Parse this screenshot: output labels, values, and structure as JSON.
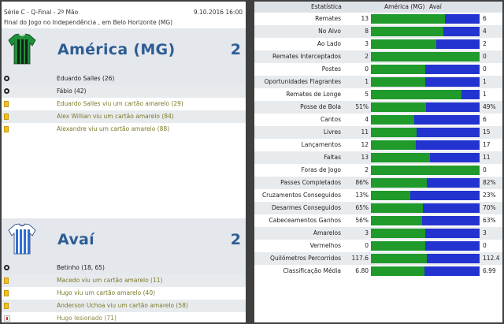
{
  "match": {
    "competition": "Série C - Q-Final - 2ª Mão",
    "date": "9.10.2016 16:00",
    "venue": "Final do Jogo no Independência , em Belo Horizonte (MG)"
  },
  "home": {
    "name": "América (MG)",
    "score": "2",
    "kit_colors": [
      "#1e8f3a",
      "#1a1a1a"
    ],
    "events": [
      {
        "icon": "ball-icon",
        "type": "goal",
        "text": "Eduardo Salles (26)"
      },
      {
        "icon": "ball-icon",
        "type": "goal",
        "text": "Fábio (42)"
      },
      {
        "icon": "yellow-card-icon",
        "type": "card",
        "text": "Eduardo Salles viu um cartão amarelo (29)"
      },
      {
        "icon": "yellow-card-icon",
        "type": "card",
        "text": "Alex Willian viu um cartão amarelo (84)"
      },
      {
        "icon": "yellow-card-icon",
        "type": "card",
        "text": "Alexandre viu um cartão amarelo (88)"
      }
    ]
  },
  "away": {
    "name": "Avaí",
    "score": "2",
    "kit_colors": [
      "#2f6fd0",
      "#ffffff"
    ],
    "events": [
      {
        "icon": "ball-icon",
        "type": "goal",
        "text": "Betinho (18, 65)"
      },
      {
        "icon": "yellow-card-icon",
        "type": "card",
        "text": "Macedo viu um cartão amarelo (11)"
      },
      {
        "icon": "yellow-card-icon",
        "type": "card",
        "text": "Hugo viu um cartão amarelo (40)"
      },
      {
        "icon": "yellow-card-icon",
        "type": "card",
        "text": "Anderson Uchoa viu um cartão amarelo (58)"
      },
      {
        "icon": "injury-icon",
        "type": "injury",
        "text": "Hugo lesionado (71)"
      }
    ]
  },
  "stats": {
    "header": {
      "stat": "Estatística",
      "home": "América (MG)",
      "away": "Avaí"
    },
    "colors": {
      "home": "#1f9a2b",
      "away": "#2333d0"
    },
    "rows": [
      {
        "label": "Remates",
        "home": "13",
        "away": "6",
        "home_share": 0.684
      },
      {
        "label": "No Alvo",
        "home": "8",
        "away": "4",
        "home_share": 0.667
      },
      {
        "label": "Ao Lado",
        "home": "3",
        "away": "2",
        "home_share": 0.6
      },
      {
        "label": "Remates Interceptados",
        "home": "2",
        "away": "0",
        "home_share": 1.0
      },
      {
        "label": "Postes",
        "home": "0",
        "away": "0",
        "home_share": 0.5
      },
      {
        "label": "Oportunidades Flagrantes",
        "home": "1",
        "away": "1",
        "home_share": 0.5
      },
      {
        "label": "Remates de Longe",
        "home": "5",
        "away": "1",
        "home_share": 0.833
      },
      {
        "label": "Posse de Bola",
        "home": "51%",
        "away": "49%",
        "home_share": 0.51
      },
      {
        "label": "Cantos",
        "home": "4",
        "away": "6",
        "home_share": 0.4
      },
      {
        "label": "Livres",
        "home": "11",
        "away": "15",
        "home_share": 0.423
      },
      {
        "label": "Lançamentos",
        "home": "12",
        "away": "17",
        "home_share": 0.414
      },
      {
        "label": "Faltas",
        "home": "13",
        "away": "11",
        "home_share": 0.542
      },
      {
        "label": "Foras de Jogo",
        "home": "2",
        "away": "0",
        "home_share": 1.0
      },
      {
        "label": "Passes Completados",
        "home": "86%",
        "away": "82%",
        "home_share": 0.512
      },
      {
        "label": "Cruzamentos Conseguidos",
        "home": "13%",
        "away": "23%",
        "home_share": 0.361
      },
      {
        "label": "Desarmes Conseguidos",
        "home": "65%",
        "away": "70%",
        "home_share": 0.481
      },
      {
        "label": "Cabeceamentos Ganhos",
        "home": "56%",
        "away": "63%",
        "home_share": 0.471
      },
      {
        "label": "Amarelos",
        "home": "3",
        "away": "3",
        "home_share": 0.5
      },
      {
        "label": "Vermelhos",
        "home": "0",
        "away": "0",
        "home_share": 0.5
      },
      {
        "label": "Quilómetros Percorridos",
        "home": "117.6",
        "away": "112.4",
        "home_share": 0.511
      },
      {
        "label": "Classificação Média",
        "home": "6.80",
        "away": "6.99",
        "home_share": 0.493
      }
    ]
  }
}
